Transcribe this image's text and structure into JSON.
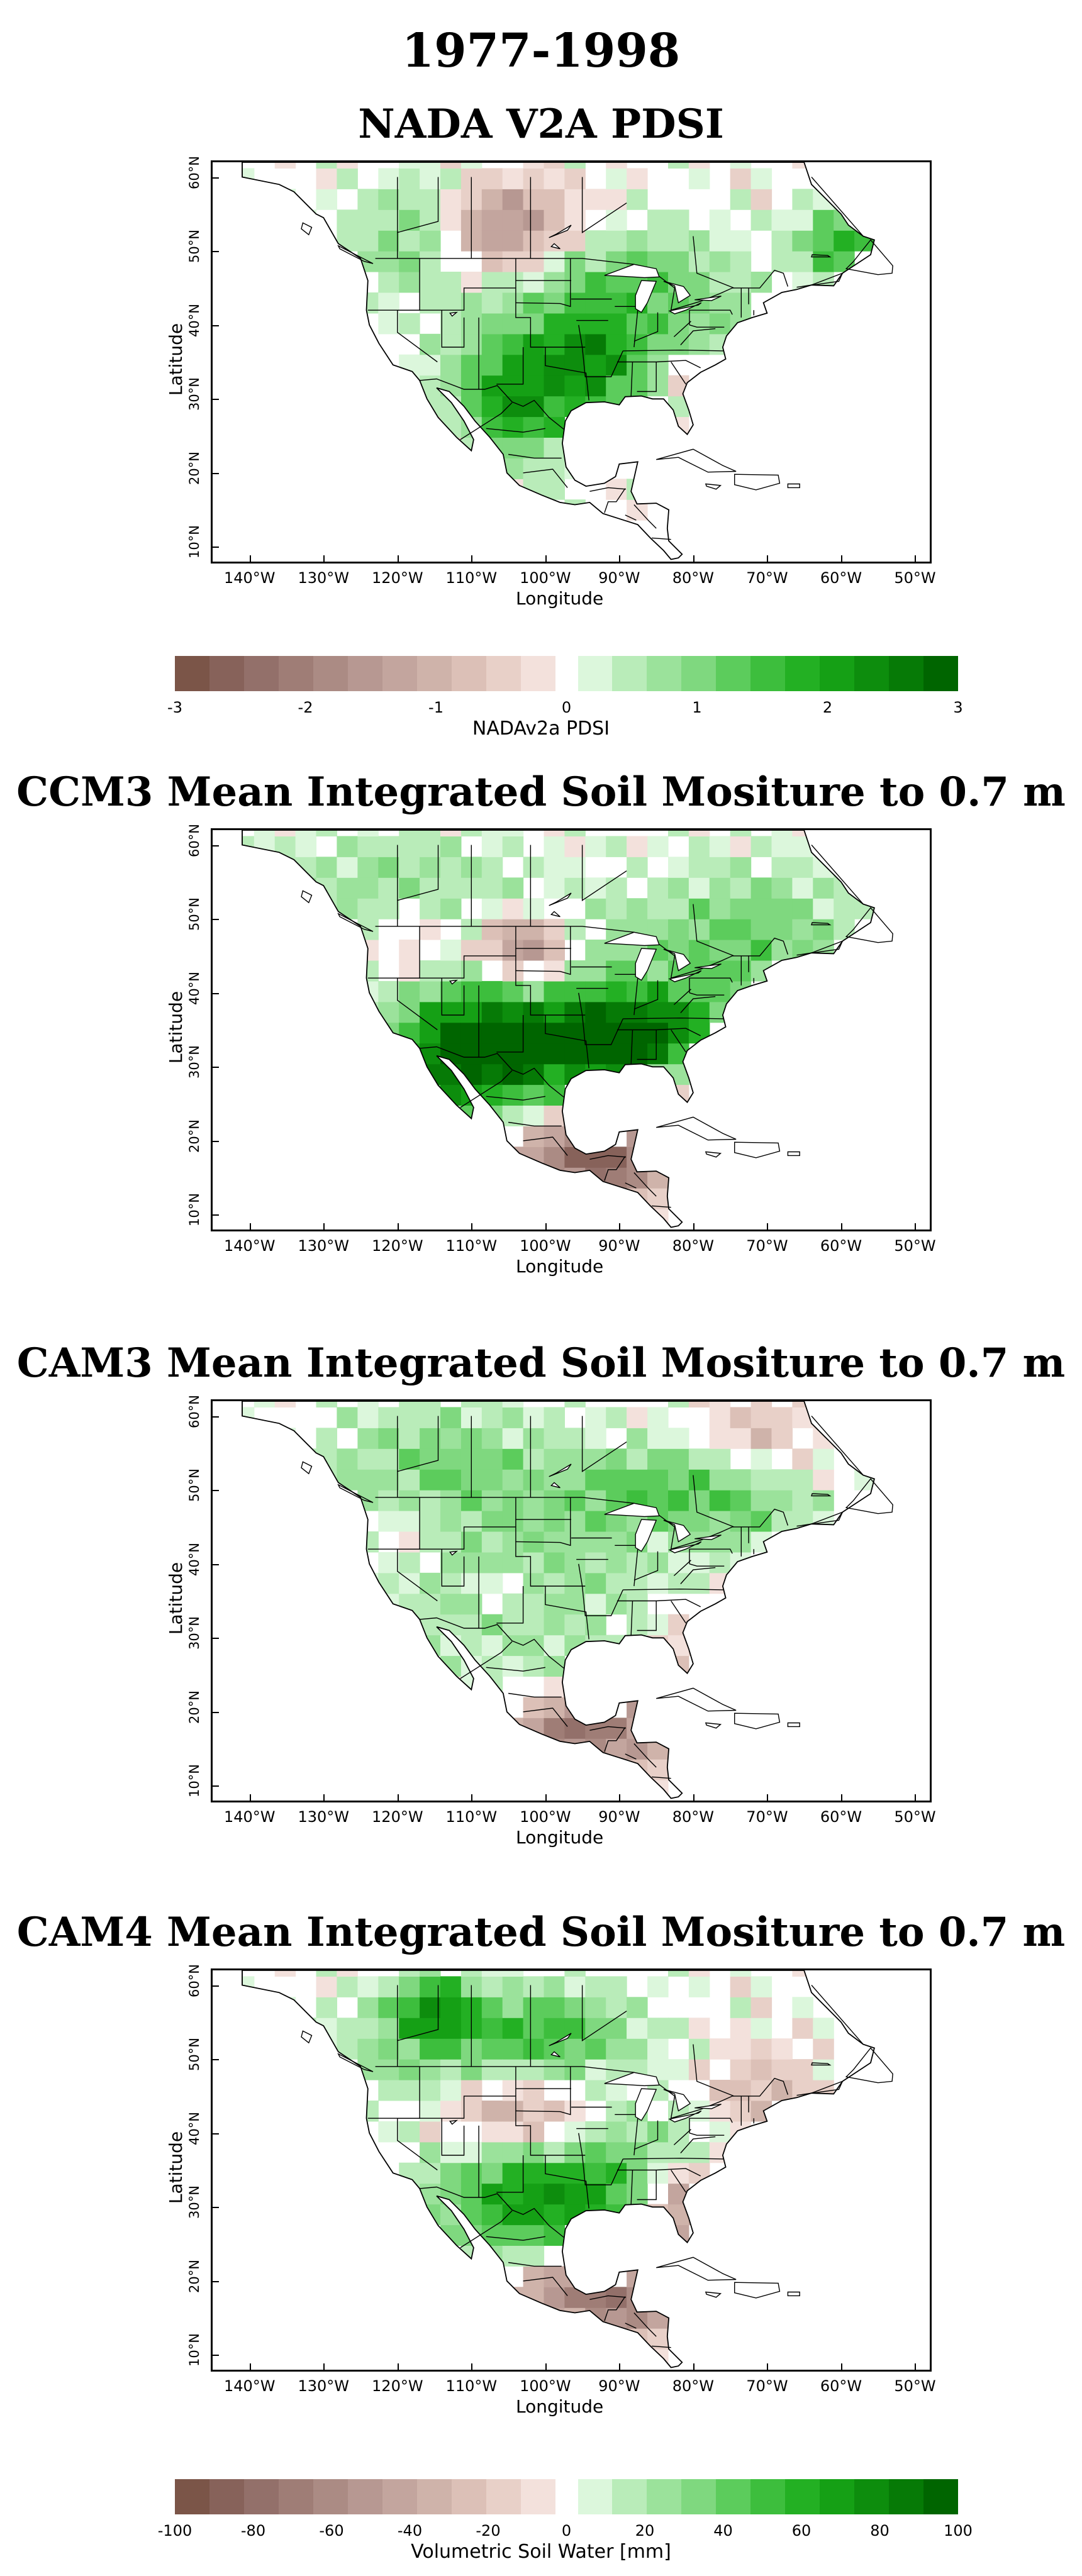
{
  "title": "1977-1998",
  "panels": [
    {
      "title": "NADA V2A PDSI",
      "xlabel": "Longitude",
      "ylabel": "Latitude",
      "pattern": "nada"
    },
    {
      "title": "CCM3 Mean Integrated Soil Mositure to 0.7 m",
      "xlabel": "Longitude",
      "ylabel": "Latitude",
      "pattern": "ccm3"
    },
    {
      "title": "CAM3 Mean Integrated Soil Mositure to 0.7 m",
      "xlabel": "Longitude",
      "ylabel": "Latitude",
      "pattern": "cam3"
    },
    {
      "title": "CAM4 Mean Integrated Soil Mositure to 0.7 m",
      "xlabel": "Longitude",
      "ylabel": "Latitude",
      "pattern": "cam4"
    }
  ],
  "lat_ticks": [
    "60°N",
    "50°N",
    "40°N",
    "30°N",
    "20°N",
    "10°N"
  ],
  "lon_ticks": [
    "140°W",
    "130°W",
    "120°W",
    "110°W",
    "100°W",
    "90°W",
    "80°W",
    "70°W",
    "60°W",
    "50°W"
  ],
  "map_extent": {
    "lon": [
      -145,
      -48
    ],
    "lat": [
      8,
      62
    ]
  },
  "colorbars": [
    {
      "title": "NADAv2a PDSI",
      "labels": [
        "-3",
        "-2",
        "-1",
        "0",
        "1",
        "2",
        "3"
      ]
    },
    {
      "title": "Volumetric Soil Water [mm]",
      "labels": [
        "-100",
        "-80",
        "-60",
        "-40",
        "-20",
        "0",
        "20",
        "40",
        "60",
        "80",
        "100"
      ]
    }
  ],
  "colors": {
    "brown_scale": [
      "#7b5548",
      "#87625a",
      "#93706a",
      "#9f7d76",
      "#ab8b84",
      "#b79892",
      "#c3a59e",
      "#cfb3aa",
      "#dcc0b7",
      "#e8d0c8",
      "#f3e1dc"
    ],
    "green_scale": [
      "#dcf7dc",
      "#b9ecb9",
      "#9be29b",
      "#7fd87f",
      "#5ccc5c",
      "#3dbe3d",
      "#23b023",
      "#15a015",
      "#0d8d0d",
      "#067a06",
      "#006500"
    ],
    "zero_gap": "#ffffff"
  }
}
